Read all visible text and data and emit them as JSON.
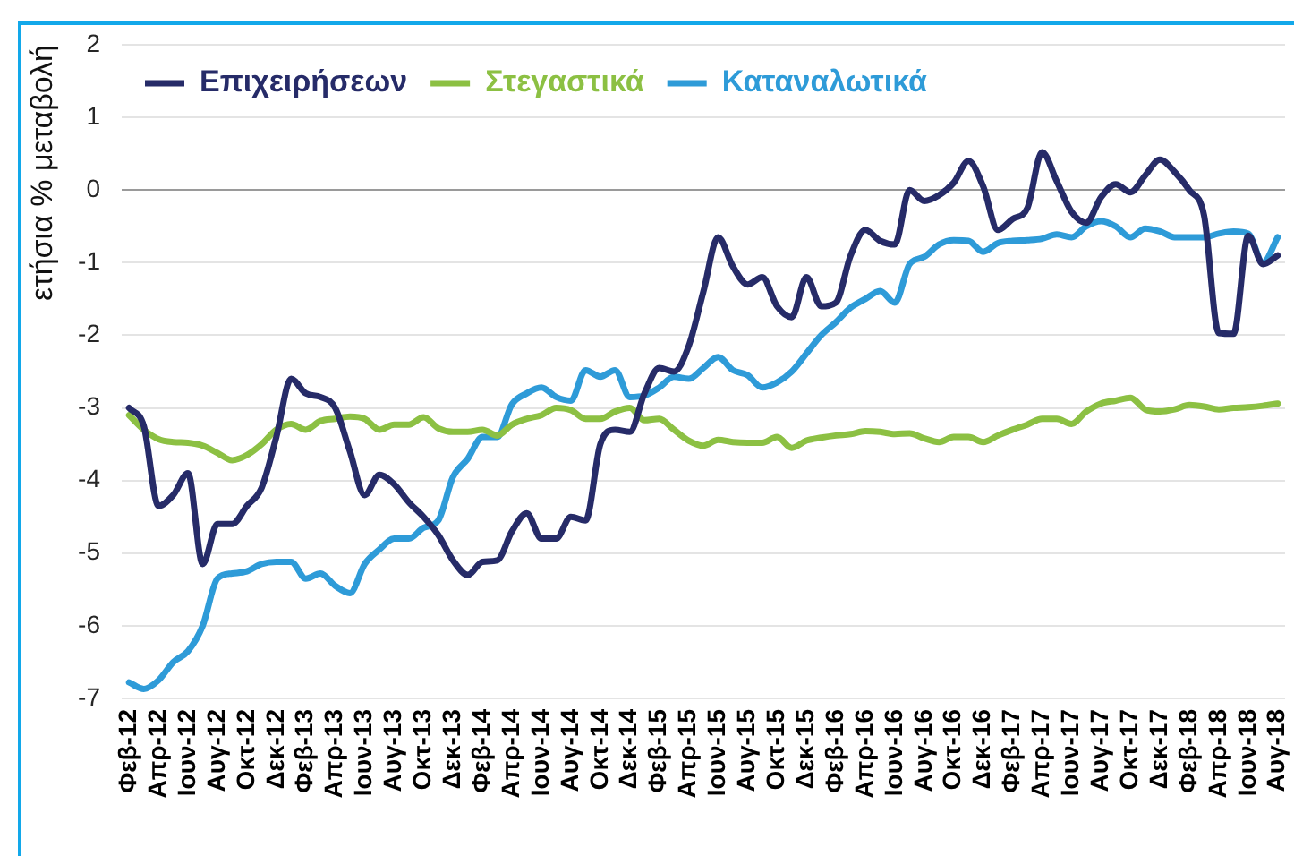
{
  "chart_data": {
    "type": "line",
    "ylabel": "ετήσια % μεταβολή",
    "legend": "top left",
    "grid": "y",
    "categories": [
      "Φεβ-12",
      null,
      "Απρ-12",
      null,
      "Ιουν-12",
      null,
      "Αυγ-12",
      null,
      "Οκτ-12",
      null,
      "Δεκ-12",
      null,
      "Φεβ-13",
      null,
      "Απρ-13",
      null,
      "Ιουν-13",
      null,
      "Αυγ-13",
      null,
      "Οκτ-13",
      null,
      "Δεκ-13",
      null,
      "Φεβ-14",
      null,
      "Απρ-14",
      null,
      "Ιουν-14",
      null,
      "Αυγ-14",
      null,
      "Οκτ-14",
      null,
      "Δεκ-14",
      null,
      "Φεβ-15",
      null,
      "Απρ-15",
      null,
      "Ιουν-15",
      null,
      "Αυγ-15",
      null,
      "Οκτ-15",
      null,
      "Δεκ-15",
      null,
      "Φεβ-16",
      null,
      "Απρ-16",
      null,
      "Ιουν-16",
      null,
      "Αυγ-16",
      null,
      "Οκτ-16",
      null,
      "Δεκ-16",
      null,
      "Φεβ-17",
      null,
      "Απρ-17",
      null,
      "Ιουν-17",
      null,
      "Αυγ-17",
      null,
      "Οκτ-17",
      null,
      "Δεκ-17",
      null,
      "Φεβ-18",
      null,
      "Απρ-18",
      null,
      "Ιουν-18",
      null,
      "Αυγ-18"
    ],
    "ylim": [
      -7,
      2
    ],
    "yticks": [
      -7,
      -6,
      -5,
      -4,
      -3,
      -2,
      -1,
      0,
      1,
      2
    ],
    "series": [
      {
        "name": "Επιχειρήσεων",
        "color": "#262b68",
        "values": [
          -3.0,
          -3.25,
          -4.35,
          -4.2,
          -3.9,
          -5.15,
          -4.6,
          -4.6,
          -4.35,
          -4.1,
          -3.4,
          -2.6,
          -2.8,
          -2.85,
          -3.0,
          -3.6,
          -4.2,
          -3.92,
          -4.05,
          -4.3,
          -4.5,
          -4.75,
          -5.1,
          -5.3,
          -5.12,
          -5.1,
          -4.7,
          -4.45,
          -4.8,
          -4.8,
          -4.5,
          -4.55,
          -3.5,
          -3.3,
          -3.33,
          -2.8,
          -2.45,
          -2.5,
          -2.15,
          -1.4,
          -0.65,
          -1.05,
          -1.3,
          -1.2,
          -1.6,
          -1.75,
          -1.2,
          -1.6,
          -1.55,
          -0.9,
          -0.55,
          -0.7,
          -0.75,
          0.0,
          -0.15,
          -0.07,
          0.1,
          0.4,
          0.05,
          -0.55,
          -0.4,
          -0.25,
          0.52,
          0.12,
          -0.3,
          -0.45,
          -0.1,
          0.08,
          -0.03,
          0.2,
          0.42,
          0.25,
          0.0,
          -0.35,
          -1.97,
          -1.98,
          -0.63,
          -1.02,
          -0.9
        ]
      },
      {
        "name": "Στεγαστικά",
        "color": "#8cc043",
        "values": [
          -3.1,
          -3.3,
          -3.43,
          -3.47,
          -3.48,
          -3.52,
          -3.62,
          -3.72,
          -3.65,
          -3.5,
          -3.3,
          -3.22,
          -3.3,
          -3.18,
          -3.15,
          -3.12,
          -3.15,
          -3.3,
          -3.23,
          -3.23,
          -3.13,
          -3.28,
          -3.33,
          -3.33,
          -3.3,
          -3.38,
          -3.23,
          -3.15,
          -3.1,
          -3.0,
          -3.03,
          -3.15,
          -3.15,
          -3.05,
          -3.0,
          -3.17,
          -3.15,
          -3.3,
          -3.45,
          -3.52,
          -3.44,
          -3.47,
          -3.48,
          -3.48,
          -3.4,
          -3.55,
          -3.45,
          -3.41,
          -3.38,
          -3.36,
          -3.32,
          -3.33,
          -3.36,
          -3.35,
          -3.42,
          -3.47,
          -3.4,
          -3.4,
          -3.47,
          -3.38,
          -3.3,
          -3.23,
          -3.15,
          -3.15,
          -3.22,
          -3.05,
          -2.94,
          -2.9,
          -2.86,
          -3.02,
          -3.05,
          -3.02,
          -2.96,
          -2.98,
          -3.02,
          -3.0,
          -2.99,
          -2.97,
          -2.94
        ]
      },
      {
        "name": "Καταναλωτικά",
        "color": "#2e9bd8",
        "values": [
          -6.78,
          -6.87,
          -6.75,
          -6.5,
          -6.35,
          -6.0,
          -5.35,
          -5.28,
          -5.25,
          -5.15,
          -5.12,
          -5.12,
          -5.35,
          -5.28,
          -5.45,
          -5.55,
          -5.15,
          -4.95,
          -4.8,
          -4.8,
          -4.65,
          -4.55,
          -3.95,
          -3.7,
          -3.4,
          -3.4,
          -2.95,
          -2.8,
          -2.72,
          -2.85,
          -2.9,
          -2.48,
          -2.57,
          -2.48,
          -2.85,
          -2.83,
          -2.72,
          -2.57,
          -2.6,
          -2.45,
          -2.3,
          -2.48,
          -2.55,
          -2.72,
          -2.65,
          -2.5,
          -2.25,
          -2.0,
          -1.82,
          -1.62,
          -1.5,
          -1.39,
          -1.55,
          -1.02,
          -0.92,
          -0.75,
          -0.69,
          -0.7,
          -0.85,
          -0.73,
          -0.7,
          -0.69,
          -0.67,
          -0.61,
          -0.65,
          -0.5,
          -0.43,
          -0.5,
          -0.65,
          -0.53,
          -0.57,
          -0.65,
          -0.65,
          -0.65,
          -0.6,
          -0.57,
          -0.6,
          -1.0,
          -0.65
        ]
      }
    ]
  }
}
